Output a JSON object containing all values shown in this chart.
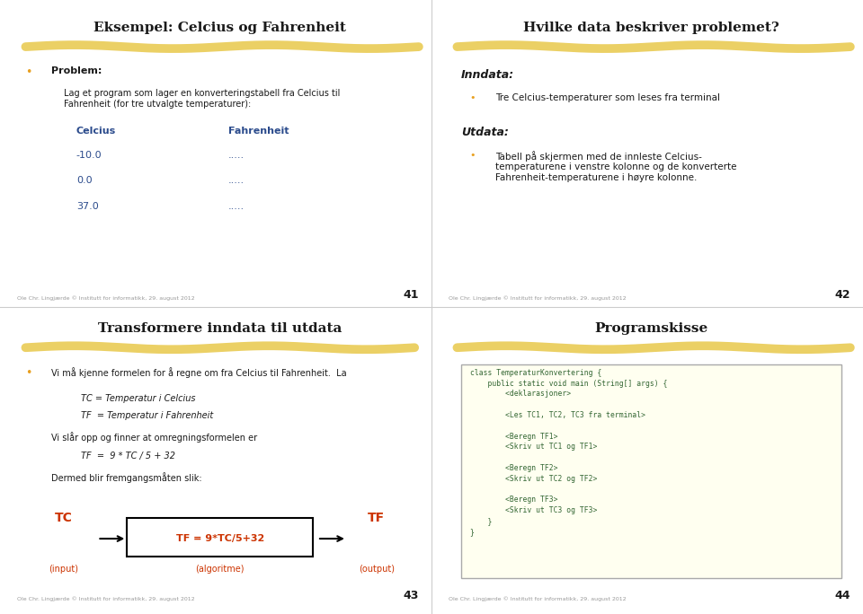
{
  "bg_color": "#ffffff",
  "divider_color": "#cccccc",
  "highlight_color": "#e8c84a",
  "bullet_color": "#e8a020",
  "blue_text": "#2b4b8c",
  "dark_text": "#1a1a1a",
  "red_text": "#cc3300",
  "code_bg": "#fffff0",
  "code_border": "#888888",
  "footer_text": "Ole Chr. Lingjærde © Institutt for informatikk, 29. august 2012",
  "slide1": {
    "title": "Eksempel: Celcius og Fahrenheit",
    "page": "41",
    "bullet1_label": "Problem:",
    "bullet1_text": "Lag et program som lager en konverteringstabell fra Celcius til\nFahrenheit (for tre utvalgte temperaturer):",
    "col1_header": "Celcius",
    "col2_header": "Fahrenheit",
    "col1_values": [
      "-10.0",
      "0.0",
      "37.0"
    ],
    "col2_values": [
      ".....",
      ".....",
      "....."
    ]
  },
  "slide2": {
    "title": "Hvilke data beskriver problemet?",
    "page": "42",
    "inndata_label": "Inndata:",
    "inndata_bullet": "Tre Celcius-temperaturer som leses fra terminal",
    "utdata_label": "Utdata:",
    "utdata_bullet": "Tabell på skjermen med de innleste Celcius-\ntemperaturene i venstre kolonne og de konverterte\nFahrenheit-temperaturene i høyre kolonne."
  },
  "slide3": {
    "title": "Transformere inndata til utdata",
    "page": "43",
    "bullet1": "Vi må kjenne formelen for å regne om fra Celcius til Fahrenheit.  La",
    "line1": "TC = Temperatur i Celcius",
    "line2": "TF  = Temperatur i Fahrenheit",
    "line3": "Vi slår opp og finner at omregningsformelen er",
    "line4": "TF  =  9 * TC / 5 + 32",
    "line5": "Dermed blir fremgangsmåten slik:",
    "box_label": "TF = 9*TC/5+32",
    "input_label": "TC",
    "input_sub": "(input)",
    "algo_sub": "(algoritme)",
    "output_label": "TF",
    "output_sub": "(output)"
  },
  "slide4": {
    "title": "Programskisse",
    "page": "44",
    "code": "class TemperaturKonvertering {\n    public static void main (String[] args) {\n        <deklarasjoner>\n\n        <Les TC1, TC2, TC3 fra terminal>\n\n        <Beregn TF1>\n        <Skriv ut TC1 og TF1>\n\n        <Beregn TF2>\n        <Skriv ut TC2 og TF2>\n\n        <Beregn TF3>\n        <Skriv ut TC3 og TF3>\n    }\n}"
  }
}
